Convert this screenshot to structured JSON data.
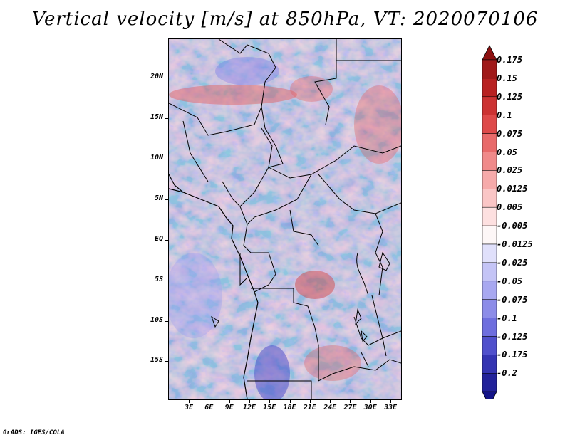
{
  "title": "Vertical velocity [m/s] at 850hPa, VT: 2020070106",
  "credit": "GrADS: IGES/COLA",
  "map": {
    "lat_labels": [
      "20N",
      "15N",
      "10N",
      "5N",
      "EQ",
      "5S",
      "10S",
      "15S"
    ],
    "lon_labels": [
      "3E",
      "6E",
      "9E",
      "12E",
      "15E",
      "18E",
      "21E",
      "24E",
      "27E",
      "30E",
      "33E"
    ],
    "field_description": "shaded vertical velocity field over central Africa with country borders and coastlines"
  },
  "colorbar": {
    "levels": [
      {
        "label": "0.175",
        "color": "#a01a1a"
      },
      {
        "label": "0.15",
        "color": "#b82222"
      },
      {
        "label": "0.125",
        "color": "#cc3333"
      },
      {
        "label": "0.1",
        "color": "#de4a4a"
      },
      {
        "label": "0.075",
        "color": "#e86a6a"
      },
      {
        "label": "0.05",
        "color": "#f08a8a"
      },
      {
        "label": "0.025",
        "color": "#f6aaaa"
      },
      {
        "label": "0.0125",
        "color": "#fac6c6"
      },
      {
        "label": "0.005",
        "color": "#fde0e0"
      },
      {
        "label": "-0.005",
        "color": "#fdf7f7"
      },
      {
        "label": "-0.0125",
        "color": "#e0e0fb"
      },
      {
        "label": "-0.025",
        "color": "#c4c4f6"
      },
      {
        "label": "-0.05",
        "color": "#a8a8f0"
      },
      {
        "label": "-0.075",
        "color": "#8c8ce8"
      },
      {
        "label": "-0.1",
        "color": "#6e6ede"
      },
      {
        "label": "-0.125",
        "color": "#5050cc"
      },
      {
        "label": "-0.175",
        "color": "#3434b2"
      },
      {
        "label": "-0.2",
        "color": "#22229a"
      }
    ],
    "top_color": "#8c1010",
    "bottom_color": "#141488"
  }
}
